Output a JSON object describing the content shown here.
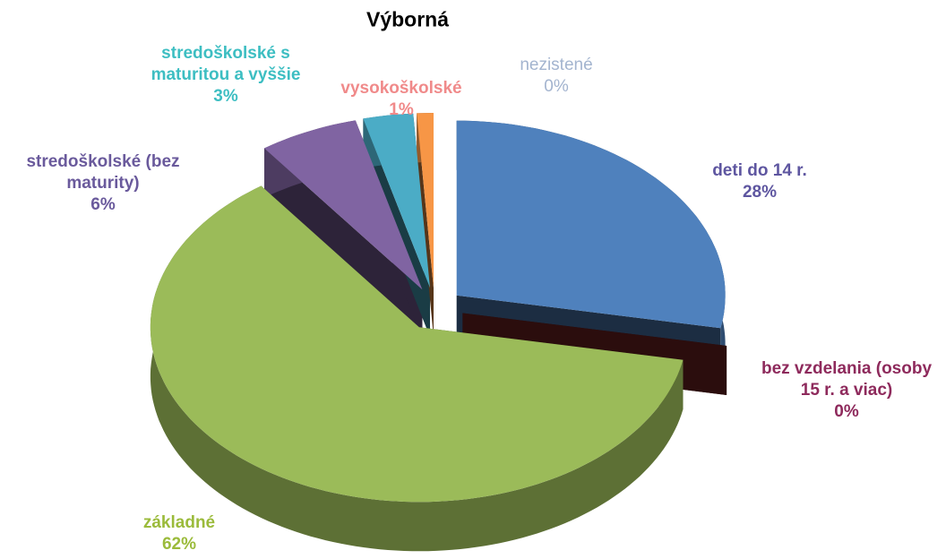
{
  "chart_data": {
    "type": "pie",
    "title": "Výborná",
    "categories": [
      "deti do 14 r.",
      "bez vzdelania (osoby 15 r. a viac)",
      "základné",
      "stredoškolské (bez maturity)",
      "stredoškolské s maturitou a vyššie",
      "vysokoškolské",
      "nezistené"
    ],
    "values": [
      28,
      0,
      62,
      6,
      3,
      1,
      0
    ],
    "value_labels": [
      "28%",
      "0%",
      "62%",
      "6%",
      "3%",
      "1%",
      "0%"
    ],
    "colors": [
      "#4f81bd",
      "#7b2626",
      "#9bbb59",
      "#8064a2",
      "#4bacc6",
      "#f79646",
      "#a3b8d8"
    ],
    "label_colors": [
      "#5e56a0",
      "#8e2a5c",
      "#9bbb3b",
      "#6a5a9c",
      "#3dbec2",
      "#f08a8a",
      "#a3b4cf"
    ]
  }
}
